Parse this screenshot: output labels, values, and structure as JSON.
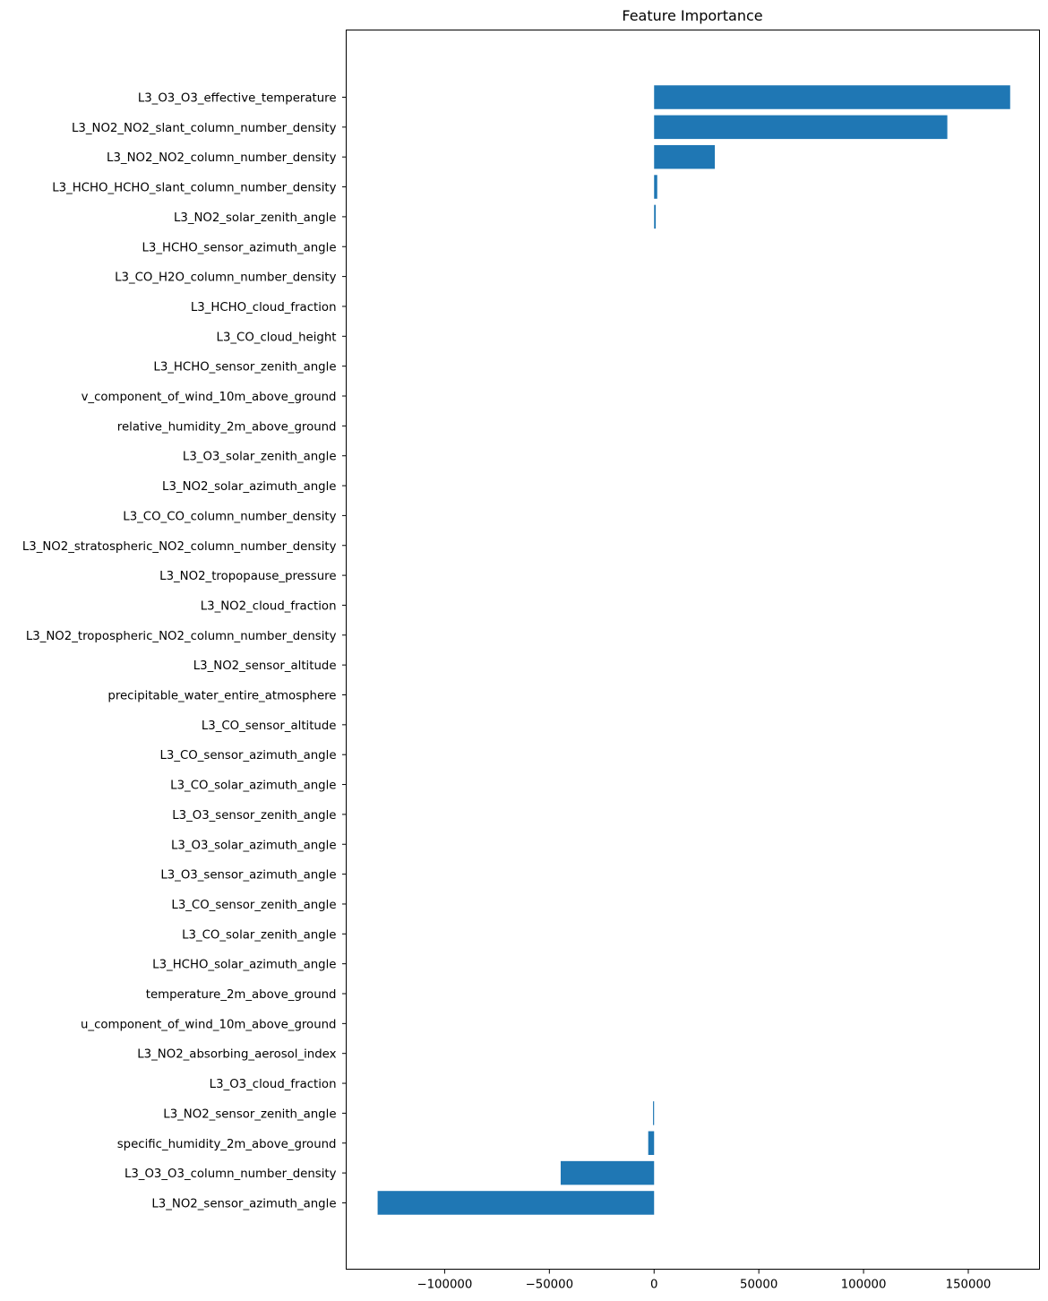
{
  "chart_data": {
    "type": "bar",
    "orientation": "horizontal",
    "title": "Feature Importance",
    "xlabel": "",
    "ylabel": "",
    "xlim": [
      -147000,
      184000
    ],
    "grid": false,
    "legend": "none",
    "bar_color": "#1f77b4",
    "x_ticks": [
      {
        "value": -100000,
        "label": "−100000"
      },
      {
        "value": -50000,
        "label": "−50000"
      },
      {
        "value": 0,
        "label": "0"
      },
      {
        "value": 50000,
        "label": "50000"
      },
      {
        "value": 100000,
        "label": "100000"
      },
      {
        "value": 150000,
        "label": "150000"
      }
    ],
    "categories": [
      "L3_O3_O3_effective_temperature",
      "L3_NO2_NO2_slant_column_number_density",
      "L3_NO2_NO2_column_number_density",
      "L3_HCHO_HCHO_slant_column_number_density",
      "L3_NO2_solar_zenith_angle",
      "L3_HCHO_sensor_azimuth_angle",
      "L3_CO_H2O_column_number_density",
      "L3_HCHO_cloud_fraction",
      "L3_CO_cloud_height",
      "L3_HCHO_sensor_zenith_angle",
      "v_component_of_wind_10m_above_ground",
      "relative_humidity_2m_above_ground",
      "L3_O3_solar_zenith_angle",
      "L3_NO2_solar_azimuth_angle",
      "L3_CO_CO_column_number_density",
      "L3_NO2_stratospheric_NO2_column_number_density",
      "L3_NO2_tropopause_pressure",
      "L3_NO2_cloud_fraction",
      "L3_NO2_tropospheric_NO2_column_number_density",
      "L3_NO2_sensor_altitude",
      "precipitable_water_entire_atmosphere",
      "L3_CO_sensor_altitude",
      "L3_CO_sensor_azimuth_angle",
      "L3_CO_solar_azimuth_angle",
      "L3_O3_sensor_zenith_angle",
      "L3_O3_solar_azimuth_angle",
      "L3_O3_sensor_azimuth_angle",
      "L3_CO_sensor_zenith_angle",
      "L3_CO_solar_zenith_angle",
      "L3_HCHO_solar_azimuth_angle",
      "temperature_2m_above_ground",
      "u_component_of_wind_10m_above_ground",
      "L3_NO2_absorbing_aerosol_index",
      "L3_O3_cloud_fraction",
      "L3_NO2_sensor_zenith_angle",
      "specific_humidity_2m_above_ground",
      "L3_O3_O3_column_number_density",
      "L3_NO2_sensor_azimuth_angle"
    ],
    "values": [
      170000,
      140000,
      29000,
      1500,
      800,
      0,
      0,
      0,
      0,
      0,
      0,
      0,
      0,
      0,
      0,
      0,
      0,
      0,
      0,
      0,
      0,
      0,
      0,
      0,
      0,
      0,
      0,
      0,
      0,
      0,
      0,
      0,
      0,
      0,
      -500,
      -2800,
      -44600,
      -132000
    ]
  }
}
